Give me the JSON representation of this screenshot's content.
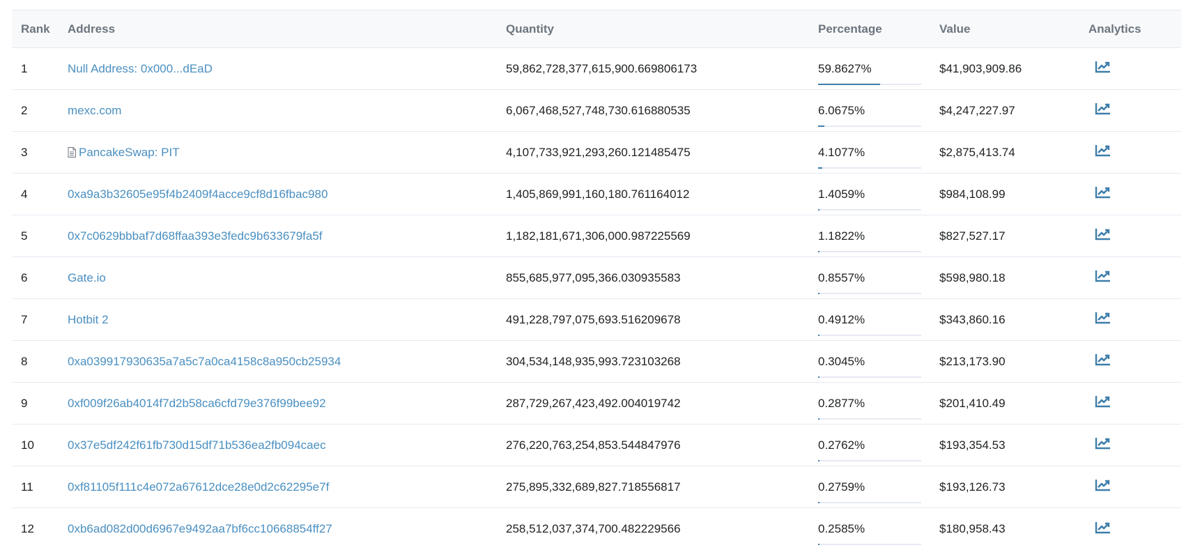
{
  "columns": {
    "rank": "Rank",
    "address": "Address",
    "quantity": "Quantity",
    "percentage": "Percentage",
    "value": "Value",
    "analytics": "Analytics"
  },
  "accent_color": "#3e7eab",
  "link_color": "#4a8fc1",
  "rows": [
    {
      "rank": "1",
      "address": "Null Address: 0x000...dEaD",
      "contract": false,
      "quantity": "59,862,728,377,615,900.669806173",
      "percentage": "59.8627%",
      "pct_value": 59.8627,
      "value": "$41,903,909.86"
    },
    {
      "rank": "2",
      "address": "mexc.com",
      "contract": false,
      "quantity": "6,067,468,527,748,730.616880535",
      "percentage": "6.0675%",
      "pct_value": 6.0675,
      "value": "$4,247,227.97"
    },
    {
      "rank": "3",
      "address": "PancakeSwap: PIT",
      "contract": true,
      "quantity": "4,107,733,921,293,260.121485475",
      "percentage": "4.1077%",
      "pct_value": 4.1077,
      "value": "$2,875,413.74"
    },
    {
      "rank": "4",
      "address": "0xa9a3b32605e95f4b2409f4acce9cf8d16fbac980",
      "contract": false,
      "quantity": "1,405,869,991,160,180.761164012",
      "percentage": "1.4059%",
      "pct_value": 1.4059,
      "value": "$984,108.99"
    },
    {
      "rank": "5",
      "address": "0x7c0629bbbaf7d68ffaa393e3fedc9b633679fa5f",
      "contract": false,
      "quantity": "1,182,181,671,306,000.987225569",
      "percentage": "1.1822%",
      "pct_value": 1.1822,
      "value": "$827,527.17"
    },
    {
      "rank": "6",
      "address": "Gate.io",
      "contract": false,
      "quantity": "855,685,977,095,366.030935583",
      "percentage": "0.8557%",
      "pct_value": 0.8557,
      "value": "$598,980.18"
    },
    {
      "rank": "7",
      "address": "Hotbit 2",
      "contract": false,
      "quantity": "491,228,797,075,693.516209678",
      "percentage": "0.4912%",
      "pct_value": 0.4912,
      "value": "$343,860.16"
    },
    {
      "rank": "8",
      "address": "0xa039917930635a7a5c7a0ca4158c8a950cb25934",
      "contract": false,
      "quantity": "304,534,148,935,993.723103268",
      "percentage": "0.3045%",
      "pct_value": 0.3045,
      "value": "$213,173.90"
    },
    {
      "rank": "9",
      "address": "0xf009f26ab4014f7d2b58ca6cfd79e376f99bee92",
      "contract": false,
      "quantity": "287,729,267,423,492.004019742",
      "percentage": "0.2877%",
      "pct_value": 0.2877,
      "value": "$201,410.49"
    },
    {
      "rank": "10",
      "address": "0x37e5df242f61fb730d15df71b536ea2fb094caec",
      "contract": false,
      "quantity": "276,220,763,254,853.544847976",
      "percentage": "0.2762%",
      "pct_value": 0.2762,
      "value": "$193,354.53"
    },
    {
      "rank": "11",
      "address": "0xf81105f111c4e072a67612dce28e0d2c62295e7f",
      "contract": false,
      "quantity": "275,895,332,689,827.718556817",
      "percentage": "0.2759%",
      "pct_value": 0.2759,
      "value": "$193,126.73"
    },
    {
      "rank": "12",
      "address": "0xb6ad082d00d6967e9492aa7bf6cc10668854ff27",
      "contract": false,
      "quantity": "258,512,037,374,700.482229566",
      "percentage": "0.2585%",
      "pct_value": 0.2585,
      "value": "$180,958.43"
    }
  ],
  "icons": {
    "analytics": "chart-line-icon",
    "contract": "document-icon"
  }
}
